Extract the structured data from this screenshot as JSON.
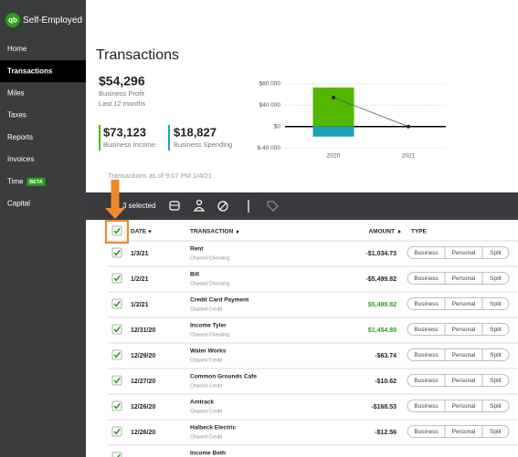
{
  "app": {
    "logo_mark": "qb",
    "name": "Self-Employed"
  },
  "nav": [
    {
      "label": "Home"
    },
    {
      "label": "Transactions",
      "active": true
    },
    {
      "label": "Miles"
    },
    {
      "label": "Taxes"
    },
    {
      "label": "Reports"
    },
    {
      "label": "Invoices"
    },
    {
      "label": "Time",
      "badge": "BETA"
    },
    {
      "label": "Capital"
    }
  ],
  "page_title": "Transactions",
  "summary": {
    "profit": {
      "amount": "$54,296",
      "label": "Business Profit",
      "period": "Last 12 months"
    },
    "income": {
      "amount": "$73,123",
      "label": "Business Income",
      "color": "#53b700"
    },
    "spending": {
      "amount": "$18,827",
      "label": "Business Spending",
      "color": "#1aa3b8"
    }
  },
  "chart": {
    "categories": [
      "2020",
      "2021"
    ],
    "ylim": [
      -50000,
      90000
    ],
    "yticks": [
      {
        "value": 80000,
        "label": "$80 000"
      },
      {
        "value": 40000,
        "label": "$40 000"
      },
      {
        "value": 0,
        "label": "$0"
      },
      {
        "value": -40000,
        "label": "$-40 000"
      }
    ],
    "series": [
      {
        "kind": "bar",
        "color": "#53b700",
        "values": [
          73123,
          null
        ]
      },
      {
        "kind": "bar",
        "color": "#1aa3b8",
        "values": [
          -18827,
          null
        ]
      },
      {
        "kind": "line",
        "color": "#555555",
        "values": [
          54296,
          0
        ]
      }
    ]
  },
  "as_of": "Transactions as of 9:07 PM 1/4/21",
  "toolbar": {
    "selected": "3 selected"
  },
  "table": {
    "columns": [
      "DATE",
      "TRANSACTION",
      "AMOUNT",
      "TYPE"
    ],
    "type_options": [
      "Business",
      "Personal",
      "Split"
    ],
    "rows": [
      {
        "date": "1/3/21",
        "name": "Rent",
        "account": "Chased Checking",
        "amount": "-$1,034.73"
      },
      {
        "date": "1/2/21",
        "name": "Bill",
        "account": "Chased Checking",
        "amount": "-$5,499.82"
      },
      {
        "date": "1/2/21",
        "name": "Credit Card Payment",
        "account": "Chased Credit",
        "amount": "$5,499.82"
      },
      {
        "date": "12/31/20",
        "name": "Income Tyler",
        "account": "Chased Checking",
        "amount": "$1,454.89"
      },
      {
        "date": "12/29/20",
        "name": "Water Works",
        "account": "Chased Credit",
        "amount": "-$63.74"
      },
      {
        "date": "12/27/20",
        "name": "Common Grounds Cafe",
        "account": "Chased Credit",
        "amount": "-$10.62"
      },
      {
        "date": "12/26/20",
        "name": "Amtrack",
        "account": "Chased Credit",
        "amount": "-$168.53"
      },
      {
        "date": "12/26/20",
        "name": "Halbeck Electric",
        "account": "Chased Credit",
        "amount": "-$12.56"
      },
      {
        "name": "Income Beth"
      }
    ]
  }
}
